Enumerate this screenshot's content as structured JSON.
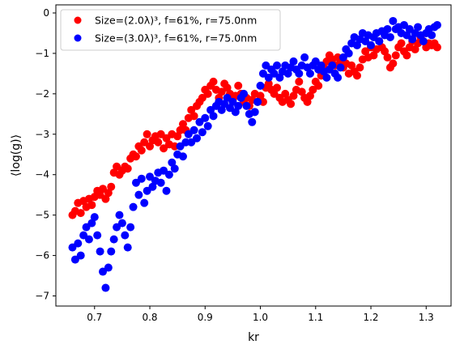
{
  "chart_data": {
    "type": "scatter",
    "xlabel": "kr",
    "ylabel": "⟨log(g)⟩",
    "xlim": [
      0.63,
      1.345
    ],
    "ylim": [
      -7.25,
      0.2
    ],
    "x_ticks": [
      "0.7",
      "0.8",
      "0.9",
      "1.0",
      "1.1",
      "1.2",
      "1.3"
    ],
    "y_ticks": [
      "0",
      "−1",
      "−2",
      "−3",
      "−4",
      "−5",
      "−6",
      "−7"
    ],
    "grid": false,
    "legend_position": "top-left",
    "series": [
      {
        "name": "Size=(2.0λ)³, f=61%, r=75.0nm",
        "color": "#ff0000",
        "points": [
          [
            0.66,
            -5.0
          ],
          [
            0.665,
            -4.9
          ],
          [
            0.67,
            -4.7
          ],
          [
            0.675,
            -4.95
          ],
          [
            0.68,
            -4.65
          ],
          [
            0.685,
            -4.8
          ],
          [
            0.69,
            -4.6
          ],
          [
            0.695,
            -4.75
          ],
          [
            0.7,
            -4.55
          ],
          [
            0.705,
            -4.4
          ],
          [
            0.71,
            -4.5
          ],
          [
            0.715,
            -4.35
          ],
          [
            0.72,
            -4.6
          ],
          [
            0.725,
            -4.45
          ],
          [
            0.73,
            -4.3
          ],
          [
            0.735,
            -3.95
          ],
          [
            0.74,
            -3.8
          ],
          [
            0.745,
            -4.0
          ],
          [
            0.75,
            -3.9
          ],
          [
            0.755,
            -3.8
          ],
          [
            0.76,
            -3.85
          ],
          [
            0.765,
            -3.6
          ],
          [
            0.77,
            -3.5
          ],
          [
            0.775,
            -3.55
          ],
          [
            0.78,
            -3.3
          ],
          [
            0.785,
            -3.4
          ],
          [
            0.79,
            -3.2
          ],
          [
            0.795,
            -3.0
          ],
          [
            0.8,
            -3.3
          ],
          [
            0.805,
            -3.15
          ],
          [
            0.81,
            -3.05
          ],
          [
            0.815,
            -3.2
          ],
          [
            0.82,
            -3.0
          ],
          [
            0.825,
            -3.35
          ],
          [
            0.83,
            -3.1
          ],
          [
            0.835,
            -3.25
          ],
          [
            0.84,
            -3.0
          ],
          [
            0.845,
            -3.3
          ],
          [
            0.85,
            -3.05
          ],
          [
            0.855,
            -2.9
          ],
          [
            0.86,
            -2.75
          ],
          [
            0.865,
            -2.9
          ],
          [
            0.87,
            -2.6
          ],
          [
            0.875,
            -2.4
          ],
          [
            0.88,
            -2.55
          ],
          [
            0.885,
            -2.3
          ],
          [
            0.89,
            -2.2
          ],
          [
            0.895,
            -2.1
          ],
          [
            0.9,
            -1.9
          ],
          [
            0.905,
            -2.0
          ],
          [
            0.91,
            -1.8
          ],
          [
            0.915,
            -1.7
          ],
          [
            0.92,
            -1.9
          ],
          [
            0.925,
            -2.1
          ],
          [
            0.93,
            -1.95
          ],
          [
            0.935,
            -1.75
          ],
          [
            0.94,
            -1.85
          ],
          [
            0.945,
            -2.0
          ],
          [
            0.95,
            -2.15
          ],
          [
            0.955,
            -2.05
          ],
          [
            0.96,
            -1.8
          ],
          [
            0.965,
            -2.0
          ],
          [
            0.97,
            -2.2
          ],
          [
            0.975,
            -2.1
          ],
          [
            0.98,
            -2.3
          ],
          [
            0.985,
            -2.15
          ],
          [
            0.99,
            -2.0
          ],
          [
            0.995,
            -2.2
          ],
          [
            1.0,
            -2.05
          ],
          [
            1.005,
            -2.2
          ],
          [
            1.01,
            -1.85
          ],
          [
            1.015,
            -1.75
          ],
          [
            1.02,
            -1.9
          ],
          [
            1.025,
            -2.0
          ],
          [
            1.03,
            -1.85
          ],
          [
            1.035,
            -2.1
          ],
          [
            1.04,
            -2.2
          ],
          [
            1.045,
            -2.0
          ],
          [
            1.05,
            -2.15
          ],
          [
            1.055,
            -2.25
          ],
          [
            1.06,
            -2.05
          ],
          [
            1.065,
            -1.9
          ],
          [
            1.07,
            -1.7
          ],
          [
            1.075,
            -1.95
          ],
          [
            1.08,
            -2.1
          ],
          [
            1.085,
            -2.2
          ],
          [
            1.09,
            -2.05
          ],
          [
            1.095,
            -1.9
          ],
          [
            1.1,
            -1.7
          ],
          [
            1.105,
            -1.8
          ],
          [
            1.11,
            -1.55
          ],
          [
            1.115,
            -1.35
          ],
          [
            1.12,
            -1.2
          ],
          [
            1.125,
            -1.05
          ],
          [
            1.13,
            -1.15
          ],
          [
            1.135,
            -1.3
          ],
          [
            1.14,
            -1.1
          ],
          [
            1.145,
            -1.2
          ],
          [
            1.15,
            -1.35
          ],
          [
            1.155,
            -1.25
          ],
          [
            1.16,
            -1.5
          ],
          [
            1.165,
            -1.3
          ],
          [
            1.17,
            -1.45
          ],
          [
            1.175,
            -1.55
          ],
          [
            1.18,
            -1.35
          ],
          [
            1.185,
            -1.15
          ],
          [
            1.19,
            -0.95
          ],
          [
            1.195,
            -1.1
          ],
          [
            1.2,
            -0.85
          ],
          [
            1.205,
            -1.05
          ],
          [
            1.21,
            -0.9
          ],
          [
            1.215,
            -0.7
          ],
          [
            1.22,
            -0.85
          ],
          [
            1.225,
            -0.95
          ],
          [
            1.23,
            -1.1
          ],
          [
            1.235,
            -1.35
          ],
          [
            1.24,
            -1.25
          ],
          [
            1.245,
            -1.05
          ],
          [
            1.25,
            -0.85
          ],
          [
            1.255,
            -0.75
          ],
          [
            1.26,
            -0.95
          ],
          [
            1.265,
            -1.05
          ],
          [
            1.27,
            -0.85
          ],
          [
            1.275,
            -0.7
          ],
          [
            1.28,
            -0.9
          ],
          [
            1.285,
            -0.75
          ],
          [
            1.29,
            -0.6
          ],
          [
            1.295,
            -0.7
          ],
          [
            1.3,
            -0.85
          ],
          [
            1.305,
            -0.75
          ],
          [
            1.31,
            -0.8
          ],
          [
            1.315,
            -0.75
          ],
          [
            1.32,
            -0.85
          ]
        ]
      },
      {
        "name": "Size=(3.0λ)³, f=61%, r=75.0nm",
        "color": "#0000ff",
        "points": [
          [
            0.66,
            -5.8
          ],
          [
            0.665,
            -6.1
          ],
          [
            0.67,
            -5.7
          ],
          [
            0.675,
            -6.0
          ],
          [
            0.68,
            -5.5
          ],
          [
            0.685,
            -5.3
          ],
          [
            0.69,
            -5.6
          ],
          [
            0.695,
            -5.2
          ],
          [
            0.7,
            -5.05
          ],
          [
            0.705,
            -5.5
          ],
          [
            0.71,
            -5.9
          ],
          [
            0.715,
            -6.4
          ],
          [
            0.72,
            -6.8
          ],
          [
            0.725,
            -6.3
          ],
          [
            0.73,
            -5.9
          ],
          [
            0.735,
            -5.6
          ],
          [
            0.74,
            -5.3
          ],
          [
            0.745,
            -5.0
          ],
          [
            0.75,
            -5.2
          ],
          [
            0.755,
            -5.5
          ],
          [
            0.76,
            -5.8
          ],
          [
            0.765,
            -5.3
          ],
          [
            0.77,
            -4.8
          ],
          [
            0.775,
            -4.2
          ],
          [
            0.78,
            -4.5
          ],
          [
            0.785,
            -4.1
          ],
          [
            0.79,
            -4.7
          ],
          [
            0.795,
            -4.4
          ],
          [
            0.8,
            -4.05
          ],
          [
            0.805,
            -4.3
          ],
          [
            0.81,
            -4.15
          ],
          [
            0.815,
            -3.95
          ],
          [
            0.82,
            -4.2
          ],
          [
            0.825,
            -3.9
          ],
          [
            0.83,
            -4.4
          ],
          [
            0.835,
            -4.0
          ],
          [
            0.84,
            -3.7
          ],
          [
            0.845,
            -3.85
          ],
          [
            0.85,
            -3.5
          ],
          [
            0.855,
            -3.3
          ],
          [
            0.86,
            -3.55
          ],
          [
            0.865,
            -3.2
          ],
          [
            0.87,
            -3.0
          ],
          [
            0.875,
            -3.2
          ],
          [
            0.88,
            -2.9
          ],
          [
            0.885,
            -3.1
          ],
          [
            0.89,
            -2.7
          ],
          [
            0.895,
            -2.95
          ],
          [
            0.9,
            -2.6
          ],
          [
            0.905,
            -2.8
          ],
          [
            0.91,
            -2.4
          ],
          [
            0.915,
            -2.55
          ],
          [
            0.92,
            -2.3
          ],
          [
            0.925,
            -2.2
          ],
          [
            0.93,
            -2.4
          ],
          [
            0.935,
            -2.25
          ],
          [
            0.94,
            -2.1
          ],
          [
            0.945,
            -2.35
          ],
          [
            0.95,
            -2.2
          ],
          [
            0.955,
            -2.45
          ],
          [
            0.96,
            -2.3
          ],
          [
            0.965,
            -2.1
          ],
          [
            0.97,
            -2.0
          ],
          [
            0.975,
            -2.3
          ],
          [
            0.98,
            -2.5
          ],
          [
            0.985,
            -2.7
          ],
          [
            0.99,
            -2.45
          ],
          [
            0.995,
            -2.2
          ],
          [
            1.0,
            -1.8
          ],
          [
            1.005,
            -1.5
          ],
          [
            1.01,
            -1.3
          ],
          [
            1.015,
            -1.6
          ],
          [
            1.02,
            -1.4
          ],
          [
            1.025,
            -1.5
          ],
          [
            1.03,
            -1.3
          ],
          [
            1.035,
            -1.6
          ],
          [
            1.04,
            -1.45
          ],
          [
            1.045,
            -1.3
          ],
          [
            1.05,
            -1.5
          ],
          [
            1.055,
            -1.35
          ],
          [
            1.06,
            -1.2
          ],
          [
            1.065,
            -1.4
          ],
          [
            1.07,
            -1.5
          ],
          [
            1.075,
            -1.3
          ],
          [
            1.08,
            -1.1
          ],
          [
            1.085,
            -1.35
          ],
          [
            1.09,
            -1.5
          ],
          [
            1.095,
            -1.3
          ],
          [
            1.1,
            -1.2
          ],
          [
            1.105,
            -1.4
          ],
          [
            1.11,
            -1.3
          ],
          [
            1.115,
            -1.45
          ],
          [
            1.12,
            -1.6
          ],
          [
            1.125,
            -1.4
          ],
          [
            1.13,
            -1.3
          ],
          [
            1.135,
            -1.5
          ],
          [
            1.14,
            -1.6
          ],
          [
            1.145,
            -1.35
          ],
          [
            1.15,
            -1.1
          ],
          [
            1.155,
            -0.9
          ],
          [
            1.16,
            -1.0
          ],
          [
            1.165,
            -0.75
          ],
          [
            1.17,
            -0.6
          ],
          [
            1.175,
            -0.8
          ],
          [
            1.18,
            -0.65
          ],
          [
            1.185,
            -0.5
          ],
          [
            1.19,
            -0.7
          ],
          [
            1.195,
            -0.55
          ],
          [
            1.2,
            -0.8
          ],
          [
            1.205,
            -0.6
          ],
          [
            1.21,
            -0.5
          ],
          [
            1.215,
            -0.7
          ],
          [
            1.22,
            -0.45
          ],
          [
            1.225,
            -0.55
          ],
          [
            1.23,
            -0.4
          ],
          [
            1.235,
            -0.6
          ],
          [
            1.24,
            -0.2
          ],
          [
            1.245,
            -0.4
          ],
          [
            1.25,
            -0.35
          ],
          [
            1.255,
            -0.5
          ],
          [
            1.26,
            -0.3
          ],
          [
            1.265,
            -0.55
          ],
          [
            1.27,
            -0.4
          ],
          [
            1.275,
            -0.65
          ],
          [
            1.28,
            -0.5
          ],
          [
            1.285,
            -0.35
          ],
          [
            1.29,
            -0.55
          ],
          [
            1.295,
            -0.7
          ],
          [
            1.3,
            -0.5
          ],
          [
            1.305,
            -0.4
          ],
          [
            1.31,
            -0.55
          ],
          [
            1.315,
            -0.35
          ],
          [
            1.32,
            -0.3
          ]
        ]
      }
    ]
  }
}
